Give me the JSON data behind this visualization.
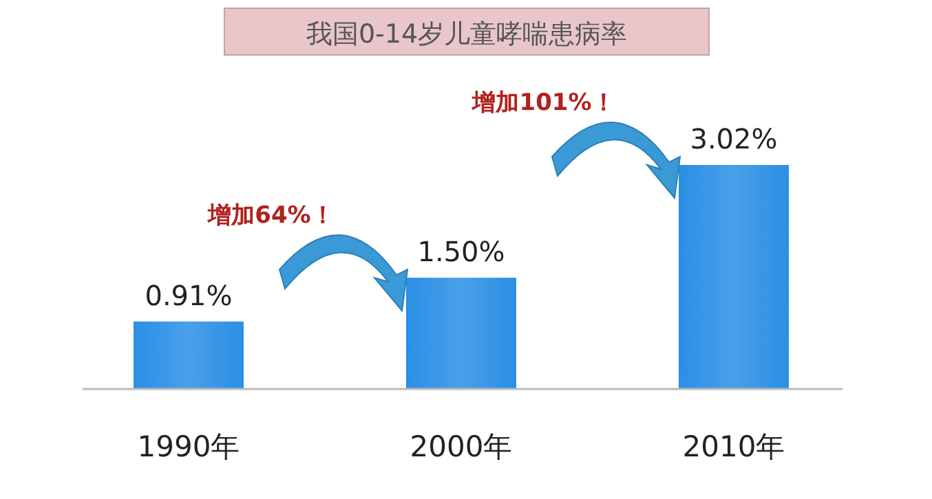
{
  "chart_data": {
    "type": "bar",
    "title": "我国0-14岁儿童哮喘患病率",
    "categories": [
      "1990年",
      "2000年",
      "2010年"
    ],
    "values": [
      0.91,
      1.5,
      3.02
    ],
    "value_labels": [
      "0.91%",
      "1.50%",
      "3.02%"
    ],
    "color": "#2a8fe4",
    "annotations": [
      "增加64%！",
      "增加101%！"
    ],
    "grid": false
  }
}
